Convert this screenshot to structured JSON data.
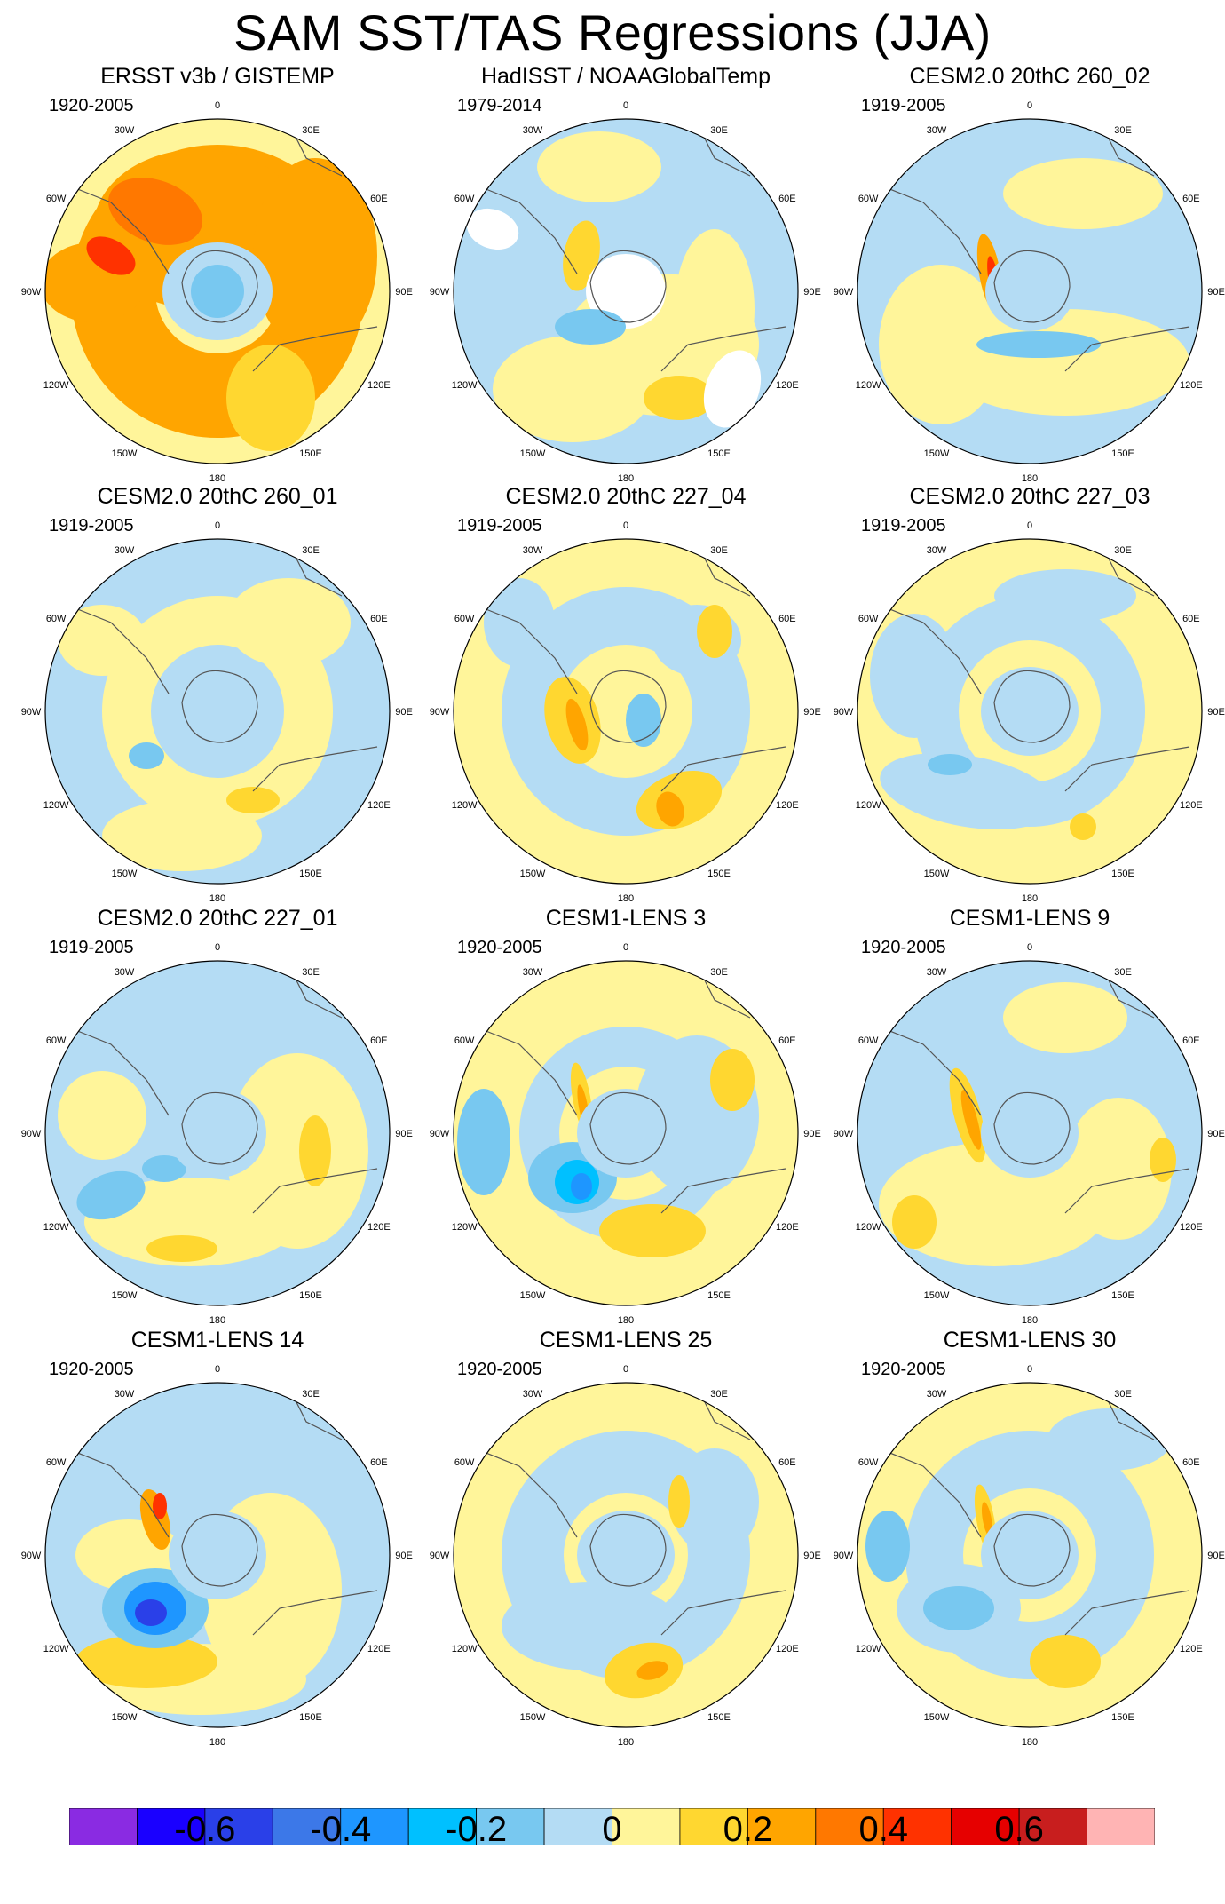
{
  "title": "SAM SST/TAS Regressions (JJA)",
  "chart_data": [
    {
      "type": "heatmap",
      "title": "ERSST v3b / GISTEMP",
      "period": "1920-2005",
      "projection": "south-polar-stereographic",
      "tone": "warm-strong"
    },
    {
      "type": "heatmap",
      "title": "HadISST / NOAAGlobalTemp",
      "period": "1979-2014",
      "projection": "south-polar-stereographic",
      "tone": "mixed-missing"
    },
    {
      "type": "heatmap",
      "title": "CESM2.0 20thC 260_02",
      "period": "1919-2005",
      "projection": "south-polar-stereographic",
      "tone": "mixed"
    },
    {
      "type": "heatmap",
      "title": "CESM2.0 20thC 260_01",
      "period": "1919-2005",
      "projection": "south-polar-stereographic",
      "tone": "mixed"
    },
    {
      "type": "heatmap",
      "title": "CESM2.0 20thC 227_04",
      "period": "1919-2005",
      "projection": "south-polar-stereographic",
      "tone": "mixed"
    },
    {
      "type": "heatmap",
      "title": "CESM2.0 20thC 227_03",
      "period": "1919-2005",
      "projection": "south-polar-stereographic",
      "tone": "mixed"
    },
    {
      "type": "heatmap",
      "title": "CESM2.0 20thC 227_01",
      "period": "1919-2005",
      "projection": "south-polar-stereographic",
      "tone": "mixed"
    },
    {
      "type": "heatmap",
      "title": "CESM1-LENS 3",
      "period": "1920-2005",
      "projection": "south-polar-stereographic",
      "tone": "cool-pacific"
    },
    {
      "type": "heatmap",
      "title": "CESM1-LENS 9",
      "period": "1920-2005",
      "projection": "south-polar-stereographic",
      "tone": "mixed"
    },
    {
      "type": "heatmap",
      "title": "CESM1-LENS 14",
      "period": "1920-2005",
      "projection": "south-polar-stereographic",
      "tone": "cool-pacific-strong"
    },
    {
      "type": "heatmap",
      "title": "CESM1-LENS 25",
      "period": "1920-2005",
      "projection": "south-polar-stereographic",
      "tone": "mixed"
    },
    {
      "type": "heatmap",
      "title": "CESM1-LENS 30",
      "period": "1920-2005",
      "projection": "south-polar-stereographic",
      "tone": "cool-pacific"
    }
  ],
  "lon_labels": {
    "top": "0",
    "tr": "30E",
    "rt": "60E",
    "right": "90E",
    "rb": "120E",
    "br": "150E",
    "bottom": "180",
    "bl": "150W",
    "lb": "120W",
    "left": "90W",
    "lt": "60W",
    "tl": "30W"
  },
  "colorbar": {
    "colors": [
      "#8a2be2",
      "#1a00ff",
      "#2a40e8",
      "#3c78e8",
      "#1e96ff",
      "#00c0ff",
      "#78c8f0",
      "#b4dcf4",
      "#fff59a",
      "#ffd730",
      "#ffa500",
      "#ff7800",
      "#ff3200",
      "#e60000",
      "#c81e1e",
      "#ffb4b4"
    ],
    "tick_labels": [
      "-0.6",
      "-0.4",
      "-0.2",
      "0",
      "0.2",
      "0.4",
      "0.6"
    ]
  }
}
